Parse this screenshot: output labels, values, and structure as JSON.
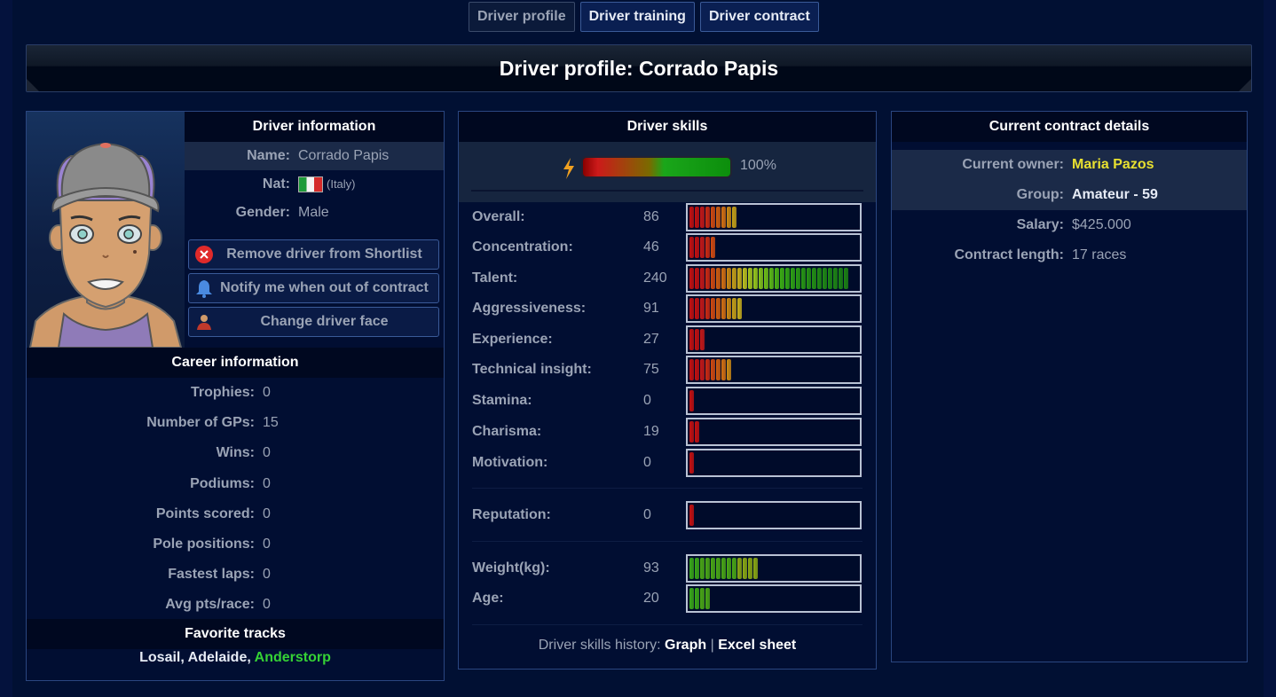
{
  "tabs": [
    {
      "label": "Driver profile",
      "active": true
    },
    {
      "label": "Driver training",
      "active": false
    },
    {
      "label": "Driver contract",
      "active": false
    }
  ],
  "page_title": "Driver profile: Corrado Papis",
  "driver_info": {
    "heading": "Driver information",
    "name_label": "Name:",
    "name": "Corrado Papis",
    "nat_label": "Nat:",
    "nat_flag_icon": "italy-flag-icon",
    "nat_country": "(Italy)",
    "gender_label": "Gender:",
    "gender": "Male",
    "buttons": {
      "remove": "Remove driver from Shortlist",
      "notify": "Notify me when out of contract",
      "change_face": "Change driver face"
    }
  },
  "career": {
    "heading": "Career information",
    "rows": [
      {
        "label": "Trophies:",
        "value": "0"
      },
      {
        "label": "Number of GPs:",
        "value": "15"
      },
      {
        "label": "Wins:",
        "value": "0"
      },
      {
        "label": "Podiums:",
        "value": "0"
      },
      {
        "label": "Points scored:",
        "value": "0"
      },
      {
        "label": "Pole positions:",
        "value": "0"
      },
      {
        "label": "Fastest laps:",
        "value": "0"
      },
      {
        "label": "Avg pts/race:",
        "value": "0"
      }
    ]
  },
  "favorite_tracks": {
    "heading": "Favorite tracks",
    "tracks": [
      "Losail",
      "Adelaide",
      "Anderstorp"
    ],
    "separator": ", "
  },
  "skills": {
    "heading": "Driver skills",
    "energy_pct": "100%",
    "energy_level": 1.0,
    "rows": [
      {
        "label": "Overall:",
        "value": "86",
        "segments": 9,
        "palette": "rank"
      },
      {
        "label": "Concentration:",
        "value": "46",
        "segments": 5,
        "palette": "rank"
      },
      {
        "label": "Talent:",
        "value": "240",
        "segments": 30,
        "palette": "rank"
      },
      {
        "label": "Aggressiveness:",
        "value": "91",
        "segments": 10,
        "palette": "rank"
      },
      {
        "label": "Experience:",
        "value": "27",
        "segments": 3,
        "palette": "rank"
      },
      {
        "label": "Technical insight:",
        "value": "75",
        "segments": 8,
        "palette": "rank"
      },
      {
        "label": "Stamina:",
        "value": "0",
        "segments": 1,
        "palette": "rank"
      },
      {
        "label": "Charisma:",
        "value": "19",
        "segments": 2,
        "palette": "rank"
      },
      {
        "label": "Motivation:",
        "value": "0",
        "segments": 1,
        "palette": "rank"
      },
      {
        "label": "Reputation:",
        "value": "0",
        "segments": 1,
        "palette": "rank"
      },
      {
        "label": "Weight(kg):",
        "value": "93",
        "segments": 13,
        "palette": "green"
      },
      {
        "label": "Age:",
        "value": "20",
        "segments": 4,
        "palette": "green"
      }
    ],
    "history_label": "Driver skills history:",
    "history_graph": "Graph",
    "history_sep": "|",
    "history_excel": "Excel sheet"
  },
  "contract": {
    "heading": "Current contract details",
    "rows": [
      {
        "label": "Current owner:",
        "value": "Maria Pazos"
      },
      {
        "label": "Group:",
        "value": "Amateur - 59"
      },
      {
        "label": "Salary:",
        "value": "$425.000"
      },
      {
        "label": "Contract length:",
        "value": "17 races"
      }
    ]
  },
  "colors": {
    "owner": "#e8e030",
    "favorite_highlight": "#35d235"
  }
}
